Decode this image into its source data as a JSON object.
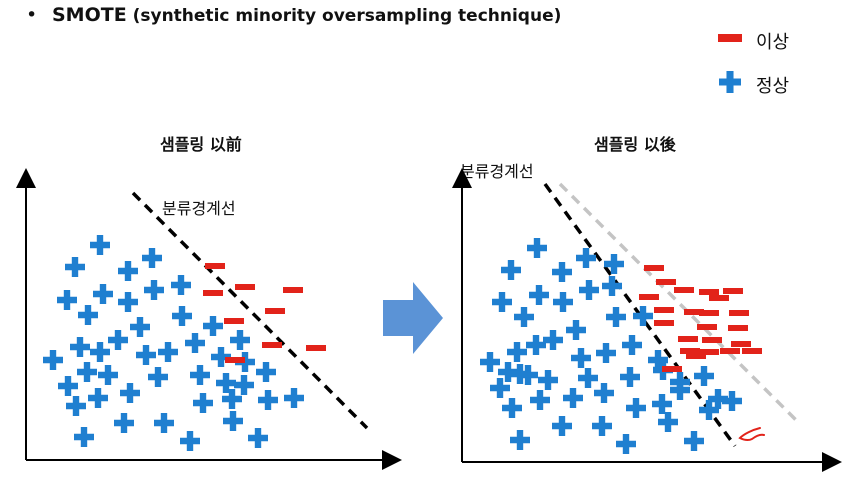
{
  "title": {
    "bullet": "•",
    "bold": "SMOTE",
    "rest": " (synthetic minority oversampling technique)"
  },
  "legend": {
    "anomaly_label": "이상",
    "normal_label": "정상",
    "anomaly_color": "#e2231a",
    "normal_color": "#1f7fd0"
  },
  "before_panel": {
    "title": "샘플링 以前",
    "boundary_label": "분류경계선"
  },
  "after_panel": {
    "title": "샘플링 以後",
    "boundary_label": "분류경계선"
  },
  "arrow_color": "#5b93d6",
  "boundary_color": "#000000",
  "shifted_boundary_color": "#c4c4c4"
}
